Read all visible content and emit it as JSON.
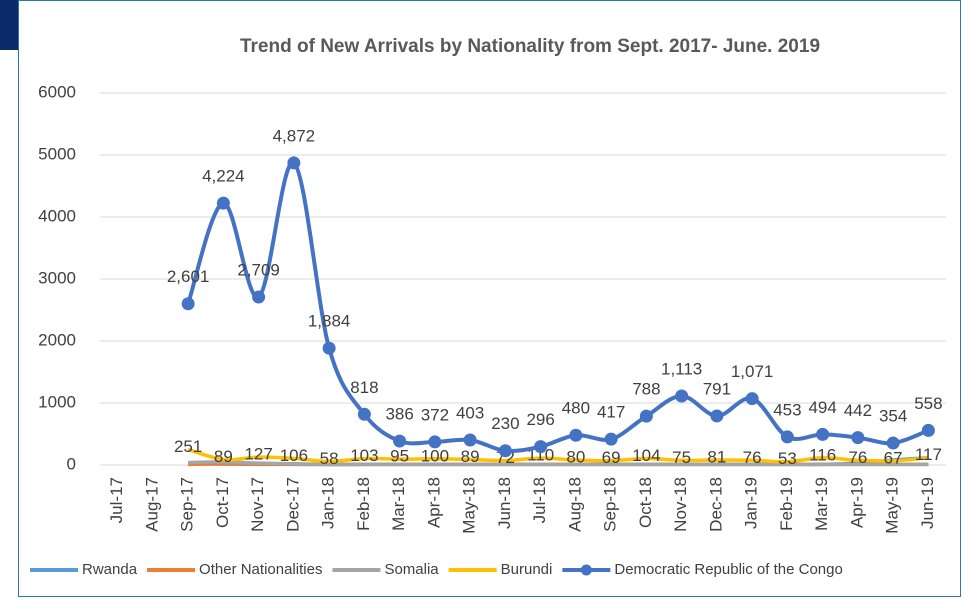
{
  "chart_data": {
    "type": "line",
    "title": "Trend of New Arrivals by Nationality from Sept. 2017- June. 2019",
    "categories": [
      "Jul-17",
      "Aug-17",
      "Sep-17",
      "Oct-17",
      "Nov-17",
      "Dec-17",
      "Jan-18",
      "Feb-18",
      "Mar-18",
      "Apr-18",
      "May-18",
      "Jun-18",
      "Jul-18",
      "Aug-18",
      "Sep-18",
      "Oct-18",
      "Nov-18",
      "Dec-18",
      "Jan-19",
      "Feb-19",
      "Mar-19",
      "Apr-19",
      "May-19",
      "Jun-19"
    ],
    "series": [
      {
        "name": "Rwanda",
        "color": "#5b9bd5",
        "values": [
          null,
          null,
          20,
          15,
          10,
          10,
          8,
          10,
          10,
          10,
          10,
          10,
          10,
          10,
          10,
          10,
          10,
          10,
          10,
          10,
          10,
          30,
          80,
          120
        ]
      },
      {
        "name": "Other Nationalities",
        "color": "#ed7d31",
        "values": [
          null,
          null,
          10,
          20,
          15,
          15,
          10,
          10,
          10,
          10,
          10,
          10,
          10,
          10,
          10,
          10,
          10,
          10,
          10,
          10,
          10,
          10,
          10,
          10
        ]
      },
      {
        "name": "Somalia",
        "color": "#a5a5a5",
        "values": [
          null,
          null,
          40,
          50,
          30,
          20,
          10,
          10,
          10,
          10,
          10,
          10,
          10,
          10,
          10,
          10,
          10,
          10,
          10,
          10,
          10,
          10,
          10,
          10
        ]
      },
      {
        "name": "Burundi",
        "color": "#ffc000",
        "values": [
          null,
          null,
          251,
          89,
          127,
          106,
          58,
          103,
          95,
          100,
          89,
          72,
          110,
          80,
          69,
          104,
          75,
          81,
          76,
          53,
          116,
          76,
          67,
          117
        ],
        "labels": true
      },
      {
        "name": "Democratic Republic of the Congo",
        "color": "#4472c4",
        "markers": true,
        "labels": true,
        "values": [
          null,
          null,
          2601,
          4224,
          2709,
          4872,
          1884,
          818,
          386,
          372,
          403,
          230,
          296,
          480,
          417,
          788,
          1113,
          791,
          1071,
          453,
          494,
          442,
          354,
          558
        ],
        "value_labels": [
          null,
          null,
          "2,601",
          "4,224",
          "2,709",
          "4,872",
          "1,884",
          "818",
          "386",
          "372",
          "403",
          "230",
          "296",
          "480",
          "417",
          "788",
          "1,113",
          "791",
          "1,071",
          "453",
          "494",
          "442",
          "354",
          "558"
        ]
      }
    ],
    "ylim": [
      0,
      6000
    ],
    "yticks": [
      0,
      1000,
      2000,
      3000,
      4000,
      5000,
      6000
    ],
    "grid": true,
    "legend": "bottom"
  }
}
